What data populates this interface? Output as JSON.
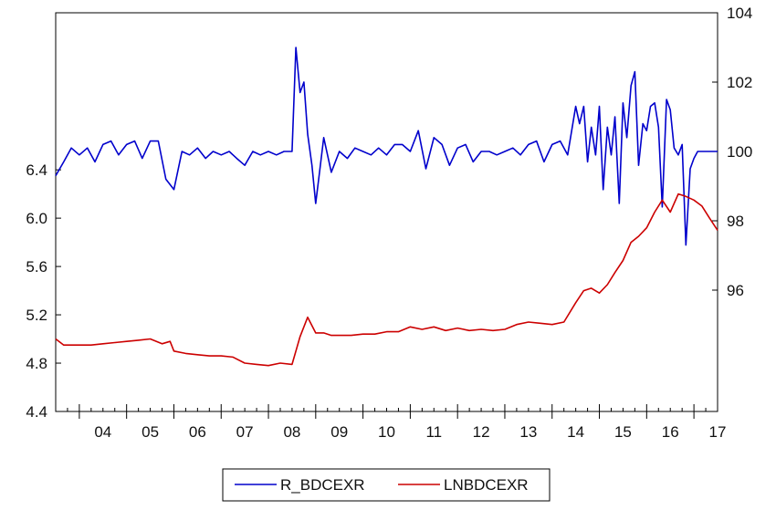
{
  "chart_data": {
    "type": "line",
    "title": "",
    "xlabel": "",
    "x_tick_labels": [
      "04",
      "05",
      "06",
      "07",
      "08",
      "09",
      "10",
      "11",
      "12",
      "13",
      "14",
      "15",
      "16",
      "17"
    ],
    "x_range": [
      2003.5,
      2017.5
    ],
    "left_axis": {
      "range": [
        4.4,
        7.7
      ],
      "ticks": [
        "4.4",
        "4.8",
        "5.2",
        "5.6",
        "6.0",
        "6.4"
      ],
      "tick_values": [
        4.4,
        4.8,
        5.2,
        5.6,
        6.0,
        6.4
      ]
    },
    "right_axis": {
      "range": [
        92.5,
        104
      ],
      "ticks": [
        "96",
        "98",
        "100",
        "102",
        "104"
      ],
      "tick_values": [
        96,
        98,
        100,
        102,
        104
      ]
    },
    "grid": false,
    "legend": {
      "position": "bottom-center",
      "entries": [
        "R_BDCEXR",
        "LNBDCEXR"
      ]
    },
    "series": [
      {
        "name": "R_BDCEXR",
        "axis": "right",
        "color": "#0000cc",
        "x": [
          2003.5,
          2003.67,
          2003.83,
          2004.0,
          2004.17,
          2004.33,
          2004.5,
          2004.67,
          2004.83,
          2005.0,
          2005.17,
          2005.33,
          2005.5,
          2005.67,
          2005.83,
          2006.0,
          2006.17,
          2006.33,
          2006.5,
          2006.67,
          2006.83,
          2007.0,
          2007.17,
          2007.33,
          2007.5,
          2007.67,
          2007.83,
          2008.0,
          2008.17,
          2008.33,
          2008.5,
          2008.58,
          2008.67,
          2008.75,
          2008.83,
          2008.92,
          2009.0,
          2009.08,
          2009.17,
          2009.33,
          2009.5,
          2009.67,
          2009.83,
          2010.0,
          2010.17,
          2010.33,
          2010.5,
          2010.67,
          2010.83,
          2011.0,
          2011.17,
          2011.33,
          2011.5,
          2011.67,
          2011.83,
          2012.0,
          2012.17,
          2012.33,
          2012.5,
          2012.67,
          2012.83,
          2013.0,
          2013.17,
          2013.33,
          2013.5,
          2013.67,
          2013.83,
          2014.0,
          2014.17,
          2014.33,
          2014.5,
          2014.58,
          2014.67,
          2014.75,
          2014.83,
          2014.92,
          2015.0,
          2015.08,
          2015.17,
          2015.25,
          2015.33,
          2015.42,
          2015.5,
          2015.58,
          2015.67,
          2015.75,
          2015.83,
          2015.92,
          2016.0,
          2016.08,
          2016.17,
          2016.25,
          2016.33,
          2016.42,
          2016.5,
          2016.58,
          2016.67,
          2016.75,
          2016.83,
          2016.92,
          2017.0,
          2017.08,
          2017.17,
          2017.25,
          2017.33,
          2017.42,
          2017.5
        ],
        "values": [
          99.3,
          99.7,
          100.1,
          99.9,
          100.1,
          99.7,
          100.2,
          100.3,
          99.9,
          100.2,
          100.3,
          99.8,
          100.3,
          100.3,
          99.2,
          98.9,
          100.0,
          99.9,
          100.1,
          99.8,
          100.0,
          99.9,
          100.0,
          99.8,
          99.6,
          100.0,
          99.9,
          100.0,
          99.9,
          100.0,
          100.0,
          103.0,
          101.7,
          102.0,
          100.5,
          99.6,
          98.5,
          99.4,
          100.4,
          99.4,
          100.0,
          99.8,
          100.1,
          100.0,
          99.9,
          100.1,
          99.9,
          100.2,
          100.2,
          100.0,
          100.6,
          99.5,
          100.4,
          100.2,
          99.6,
          100.1,
          100.2,
          99.7,
          100.0,
          100.0,
          99.9,
          100.0,
          100.1,
          99.9,
          100.2,
          100.3,
          99.7,
          100.2,
          100.3,
          99.9,
          101.3,
          100.8,
          101.3,
          99.7,
          100.7,
          99.9,
          101.3,
          98.9,
          100.7,
          99.9,
          101.0,
          98.5,
          101.4,
          100.4,
          101.9,
          102.3,
          99.6,
          100.8,
          100.6,
          101.3,
          101.4,
          100.7,
          98.4,
          101.5,
          101.2,
          100.1,
          99.9,
          100.2,
          97.3,
          99.5,
          99.8,
          100.0,
          100.0,
          100.0,
          100.0,
          100.0,
          100.0
        ]
      },
      {
        "name": "LNBDCEXR",
        "axis": "left",
        "color": "#cc0000",
        "x": [
          2003.5,
          2003.67,
          2003.83,
          2004.0,
          2004.25,
          2004.5,
          2004.75,
          2005.0,
          2005.25,
          2005.5,
          2005.75,
          2005.92,
          2006.0,
          2006.25,
          2006.5,
          2006.75,
          2007.0,
          2007.25,
          2007.5,
          2007.75,
          2008.0,
          2008.25,
          2008.5,
          2008.67,
          2008.83,
          2009.0,
          2009.17,
          2009.33,
          2009.5,
          2009.75,
          2010.0,
          2010.25,
          2010.5,
          2010.75,
          2011.0,
          2011.25,
          2011.5,
          2011.75,
          2012.0,
          2012.25,
          2012.5,
          2012.75,
          2013.0,
          2013.25,
          2013.5,
          2013.75,
          2014.0,
          2014.25,
          2014.5,
          2014.67,
          2014.83,
          2015.0,
          2015.17,
          2015.33,
          2015.5,
          2015.67,
          2015.83,
          2016.0,
          2016.17,
          2016.33,
          2016.5,
          2016.67,
          2016.83,
          2017.0,
          2017.17,
          2017.33,
          2017.5
        ],
        "values": [
          5.0,
          4.95,
          4.95,
          4.95,
          4.95,
          4.96,
          4.97,
          4.98,
          4.99,
          5.0,
          4.96,
          4.98,
          4.9,
          4.88,
          4.87,
          4.86,
          4.86,
          4.85,
          4.8,
          4.79,
          4.78,
          4.8,
          4.79,
          5.02,
          5.18,
          5.05,
          5.05,
          5.03,
          5.03,
          5.03,
          5.04,
          5.04,
          5.06,
          5.06,
          5.1,
          5.08,
          5.1,
          5.07,
          5.09,
          5.07,
          5.08,
          5.07,
          5.08,
          5.12,
          5.14,
          5.13,
          5.12,
          5.14,
          5.3,
          5.4,
          5.42,
          5.38,
          5.45,
          5.55,
          5.65,
          5.8,
          5.85,
          5.92,
          6.05,
          6.15,
          6.05,
          6.2,
          6.18,
          6.15,
          6.1,
          6.0,
          5.9
        ]
      }
    ]
  }
}
